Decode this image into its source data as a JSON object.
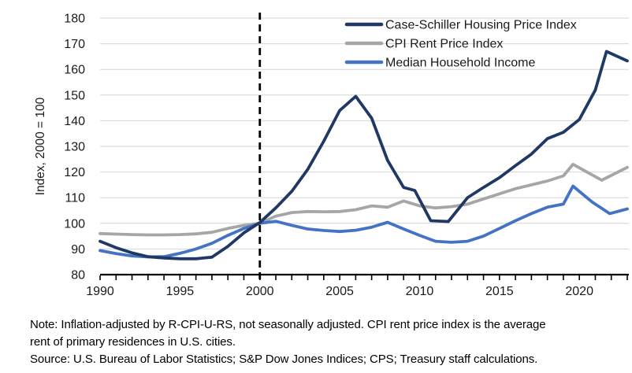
{
  "chart_data": {
    "type": "line",
    "title": "",
    "xlabel": "",
    "ylabel": "Index, 2000 = 100",
    "xlim": [
      1990,
      2023
    ],
    "ylim": [
      80,
      180
    ],
    "ytick_step": 10,
    "xticks": [
      1990,
      1995,
      2000,
      2005,
      2010,
      2015,
      2020
    ],
    "xtick_minor_step": 1,
    "grid": "horizontal",
    "legend_position": "top-right",
    "reference_line_x": 2000,
    "series": [
      {
        "name": "Case-Schiller Housing Price Index",
        "color": "#1F3864",
        "points": [
          [
            1990,
            93
          ],
          [
            1991,
            90.5
          ],
          [
            1992,
            88.5
          ],
          [
            1993,
            87
          ],
          [
            1994,
            86.5
          ],
          [
            1995,
            86.2
          ],
          [
            1996,
            86.2
          ],
          [
            1997,
            86.8
          ],
          [
            1998,
            91
          ],
          [
            1999,
            96.3
          ],
          [
            2000,
            100.3
          ],
          [
            2001,
            106
          ],
          [
            2002,
            112.5
          ],
          [
            2003,
            121
          ],
          [
            2004,
            132
          ],
          [
            2005,
            144
          ],
          [
            2006,
            149.5
          ],
          [
            2007,
            141
          ],
          [
            2008,
            124.5
          ],
          [
            2009,
            114
          ],
          [
            2009.7,
            112.8
          ],
          [
            2010.7,
            101
          ],
          [
            2011.8,
            100.7
          ],
          [
            2013,
            110
          ],
          [
            2014,
            114
          ],
          [
            2015,
            117.8
          ],
          [
            2016,
            122.5
          ],
          [
            2017,
            127
          ],
          [
            2018,
            133
          ],
          [
            2019,
            135.5
          ],
          [
            2020,
            140.5
          ],
          [
            2021,
            152
          ],
          [
            2021.7,
            167
          ],
          [
            2023,
            163.3
          ]
        ]
      },
      {
        "name": "CPI Rent Price Index",
        "color": "#A6A6A6",
        "points": [
          [
            1990,
            96
          ],
          [
            1991,
            95.8
          ],
          [
            1992,
            95.6
          ],
          [
            1993,
            95.5
          ],
          [
            1994,
            95.5
          ],
          [
            1995,
            95.6
          ],
          [
            1996,
            95.9
          ],
          [
            1997,
            96.5
          ],
          [
            1998,
            98
          ],
          [
            1999,
            99.2
          ],
          [
            2000,
            100
          ],
          [
            2001,
            102.8
          ],
          [
            2002,
            104.2
          ],
          [
            2003,
            104.6
          ],
          [
            2004,
            104.5
          ],
          [
            2005,
            104.6
          ],
          [
            2006,
            105.3
          ],
          [
            2007,
            106.8
          ],
          [
            2008,
            106.3
          ],
          [
            2009,
            108.7
          ],
          [
            2010,
            106.8
          ],
          [
            2011,
            106
          ],
          [
            2012,
            106.5
          ],
          [
            2013,
            107.5
          ],
          [
            2014,
            109.5
          ],
          [
            2015,
            111.5
          ],
          [
            2016,
            113.5
          ],
          [
            2017,
            115
          ],
          [
            2018,
            116.5
          ],
          [
            2019,
            118.5
          ],
          [
            2019.6,
            123
          ],
          [
            2021.4,
            116.8
          ],
          [
            2023,
            121.8
          ]
        ]
      },
      {
        "name": "Median Household Income",
        "color": "#4472C4",
        "points": [
          [
            1990,
            89.4
          ],
          [
            1991,
            88.2
          ],
          [
            1992,
            87.3
          ],
          [
            1993,
            86.9
          ],
          [
            1994,
            87
          ],
          [
            1995,
            88.3
          ],
          [
            1996,
            90
          ],
          [
            1997,
            92.2
          ],
          [
            1998,
            95.3
          ],
          [
            1999,
            98
          ],
          [
            2000,
            100
          ],
          [
            2001,
            100.8
          ],
          [
            2002,
            99.2
          ],
          [
            2003,
            97.8
          ],
          [
            2004,
            97.2
          ],
          [
            2005,
            96.8
          ],
          [
            2006,
            97.3
          ],
          [
            2007,
            98.5
          ],
          [
            2008,
            100.4
          ],
          [
            2009,
            97.8
          ],
          [
            2010,
            95.3
          ],
          [
            2011,
            93
          ],
          [
            2012,
            92.6
          ],
          [
            2013,
            93
          ],
          [
            2014,
            95
          ],
          [
            2015,
            98
          ],
          [
            2016,
            101
          ],
          [
            2017,
            103.8
          ],
          [
            2018,
            106.3
          ],
          [
            2019,
            107.5
          ],
          [
            2019.6,
            114.5
          ],
          [
            2020.8,
            108.3
          ],
          [
            2021.9,
            103.8
          ],
          [
            2023,
            105.6
          ]
        ]
      }
    ]
  },
  "notes": {
    "note_line1": "Note: Inflation-adjusted by R-CPI-U-RS, not seasonally adjusted. CPI rent price index is the average",
    "note_line2": "rent of primary residences in U.S. cities.",
    "source": "Source: U.S. Bureau of Labor Statistics; S&P Dow Jones Indices; CPS; Treasury staff calculations."
  },
  "colors": {
    "gridline": "#D6D6D6",
    "axis": "#000000",
    "reference_line": "#000000",
    "tick_label": "#1a1a1a"
  }
}
